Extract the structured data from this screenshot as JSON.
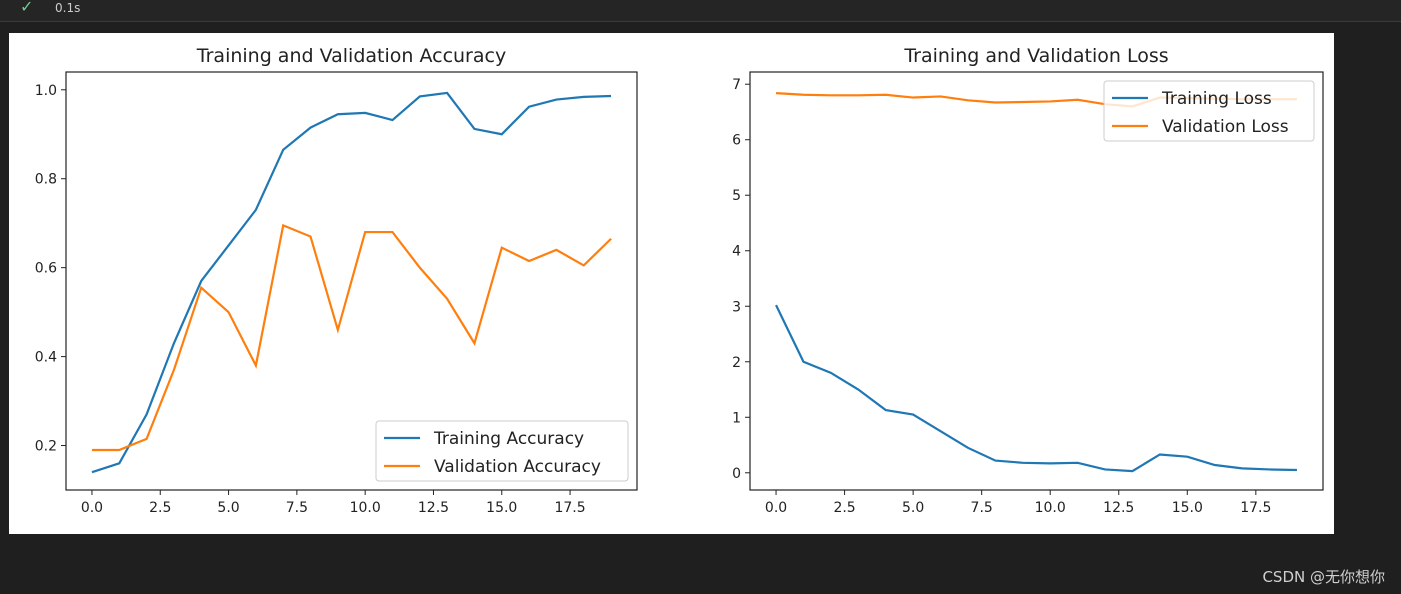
{
  "cell": {
    "status_icon": "check-icon",
    "exec_time": "0.1s"
  },
  "watermark": "CSDN @无你想你",
  "chart_data": [
    {
      "type": "line",
      "title": "Training and Validation Accuracy",
      "xlabel": "",
      "ylabel": "",
      "x": [
        0,
        1,
        2,
        3,
        4,
        5,
        6,
        7,
        8,
        9,
        10,
        11,
        12,
        13,
        14,
        15,
        16,
        17,
        18,
        19
      ],
      "xlim": [
        -0.95,
        19.95
      ],
      "ylim": [
        0.1,
        1.04
      ],
      "xticks": [
        0,
        2.5,
        5,
        7.5,
        10,
        12.5,
        15,
        17.5
      ],
      "xtick_labels": [
        "0.0",
        "2.5",
        "5.0",
        "7.5",
        "10.0",
        "12.5",
        "15.0",
        "17.5"
      ],
      "yticks": [
        0.2,
        0.4,
        0.6,
        0.8,
        1.0
      ],
      "ytick_labels": [
        "0.2",
        "0.4",
        "0.6",
        "0.8",
        "1.0"
      ],
      "legend": "lower-right",
      "series": [
        {
          "name": "Training Accuracy",
          "color": "#1f77b4",
          "values": [
            0.14,
            0.16,
            0.27,
            0.43,
            0.57,
            0.65,
            0.73,
            0.865,
            0.915,
            0.945,
            0.948,
            0.932,
            0.985,
            0.993,
            0.912,
            0.9,
            0.962,
            0.978,
            0.984,
            0.986
          ]
        },
        {
          "name": "Validation Accuracy",
          "color": "#ff7f0e",
          "values": [
            0.19,
            0.19,
            0.215,
            0.37,
            0.555,
            0.5,
            0.38,
            0.695,
            0.67,
            0.46,
            0.68,
            0.68,
            0.6,
            0.53,
            0.43,
            0.645,
            0.615,
            0.64,
            0.605,
            0.665
          ]
        }
      ]
    },
    {
      "type": "line",
      "title": "Training and Validation Loss",
      "xlabel": "",
      "ylabel": "",
      "x": [
        0,
        1,
        2,
        3,
        4,
        5,
        6,
        7,
        8,
        9,
        10,
        11,
        12,
        13,
        14,
        15,
        16,
        17,
        18,
        19
      ],
      "xlim": [
        -0.95,
        19.95
      ],
      "ylim": [
        -0.31,
        7.22
      ],
      "xticks": [
        0,
        2.5,
        5,
        7.5,
        10,
        12.5,
        15,
        17.5
      ],
      "xtick_labels": [
        "0.0",
        "2.5",
        "5.0",
        "7.5",
        "10.0",
        "12.5",
        "15.0",
        "17.5"
      ],
      "yticks": [
        0,
        1,
        2,
        3,
        4,
        5,
        6,
        7
      ],
      "ytick_labels": [
        "0",
        "1",
        "2",
        "3",
        "4",
        "5",
        "6",
        "7"
      ],
      "legend": "upper-right",
      "series": [
        {
          "name": "Training Loss",
          "color": "#1f77b4",
          "values": [
            3.02,
            2.0,
            1.8,
            1.5,
            1.13,
            1.05,
            0.75,
            0.45,
            0.22,
            0.18,
            0.17,
            0.18,
            0.06,
            0.03,
            0.33,
            0.29,
            0.14,
            0.08,
            0.06,
            0.05
          ]
        },
        {
          "name": "Validation Loss",
          "color": "#ff7f0e",
          "values": [
            6.84,
            6.81,
            6.8,
            6.8,
            6.81,
            6.76,
            6.78,
            6.71,
            6.67,
            6.68,
            6.69,
            6.72,
            6.64,
            6.6,
            6.76,
            6.75,
            6.74,
            6.73,
            6.73,
            6.73
          ]
        }
      ]
    }
  ]
}
